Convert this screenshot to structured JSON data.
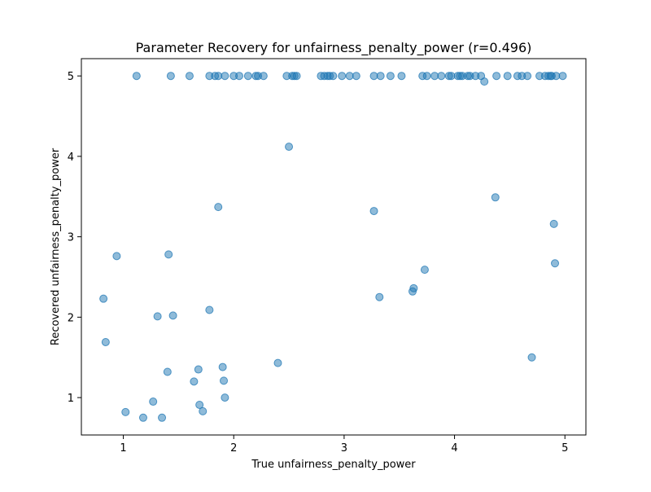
{
  "chart_data": {
    "type": "scatter",
    "title": "Parameter Recovery for unfairness_penalty_power (r=0.496)",
    "xlabel": "True unfairness_penalty_power",
    "ylabel": "Recovered unfairness_penalty_power",
    "xlim": [
      0.62,
      5.19
    ],
    "ylim": [
      0.535,
      5.215
    ],
    "xticks": [
      1,
      2,
      3,
      4,
      5
    ],
    "yticks": [
      1,
      2,
      3,
      4,
      5
    ],
    "grid": false,
    "marker_color": "#1f77b4",
    "marker_alpha": 0.5,
    "series": [
      {
        "points": [
          [
            1.12,
            5.0
          ],
          [
            1.43,
            5.0
          ],
          [
            1.6,
            5.0
          ],
          [
            1.78,
            5.0
          ],
          [
            1.83,
            5.0
          ],
          [
            1.86,
            5.0
          ],
          [
            1.92,
            5.0
          ],
          [
            2.0,
            5.0
          ],
          [
            2.05,
            5.0
          ],
          [
            2.13,
            5.0
          ],
          [
            2.2,
            5.0
          ],
          [
            2.22,
            5.0
          ],
          [
            2.27,
            5.0
          ],
          [
            2.48,
            5.0
          ],
          [
            2.53,
            5.0
          ],
          [
            2.55,
            5.0
          ],
          [
            2.57,
            5.0
          ],
          [
            2.79,
            5.0
          ],
          [
            2.82,
            5.0
          ],
          [
            2.85,
            5.0
          ],
          [
            2.87,
            5.0
          ],
          [
            2.9,
            5.0
          ],
          [
            2.98,
            5.0
          ],
          [
            3.05,
            5.0
          ],
          [
            3.11,
            5.0
          ],
          [
            3.27,
            5.0
          ],
          [
            3.33,
            5.0
          ],
          [
            3.42,
            5.0
          ],
          [
            3.52,
            5.0
          ],
          [
            3.71,
            5.0
          ],
          [
            3.75,
            5.0
          ],
          [
            3.82,
            5.0
          ],
          [
            3.88,
            5.0
          ],
          [
            3.95,
            5.0
          ],
          [
            3.97,
            5.0
          ],
          [
            4.03,
            5.0
          ],
          [
            4.05,
            5.0
          ],
          [
            4.07,
            5.0
          ],
          [
            4.12,
            5.0
          ],
          [
            4.14,
            5.0
          ],
          [
            4.19,
            5.0
          ],
          [
            4.24,
            5.0
          ],
          [
            4.38,
            5.0
          ],
          [
            4.48,
            5.0
          ],
          [
            4.57,
            5.0
          ],
          [
            4.61,
            5.0
          ],
          [
            4.66,
            5.0
          ],
          [
            4.77,
            5.0
          ],
          [
            4.82,
            5.0
          ],
          [
            4.85,
            5.0
          ],
          [
            4.87,
            5.0
          ],
          [
            4.88,
            5.0
          ],
          [
            4.92,
            5.0
          ],
          [
            4.98,
            5.0
          ],
          [
            4.27,
            4.93
          ],
          [
            2.5,
            4.12
          ],
          [
            4.37,
            3.49
          ],
          [
            1.86,
            3.37
          ],
          [
            3.27,
            3.32
          ],
          [
            4.9,
            3.16
          ],
          [
            0.94,
            2.76
          ],
          [
            1.41,
            2.78
          ],
          [
            4.91,
            2.67
          ],
          [
            3.73,
            2.59
          ],
          [
            3.63,
            2.36
          ],
          [
            3.62,
            2.32
          ],
          [
            3.32,
            2.25
          ],
          [
            0.82,
            2.23
          ],
          [
            1.78,
            2.09
          ],
          [
            1.31,
            2.01
          ],
          [
            1.45,
            2.02
          ],
          [
            0.84,
            1.69
          ],
          [
            4.7,
            1.5
          ],
          [
            2.4,
            1.43
          ],
          [
            1.9,
            1.38
          ],
          [
            1.68,
            1.35
          ],
          [
            1.4,
            1.32
          ],
          [
            1.91,
            1.21
          ],
          [
            1.64,
            1.2
          ],
          [
            1.92,
            1.0
          ],
          [
            1.27,
            0.95
          ],
          [
            1.69,
            0.91
          ],
          [
            1.72,
            0.83
          ],
          [
            1.02,
            0.82
          ],
          [
            1.18,
            0.75
          ],
          [
            1.35,
            0.75
          ]
        ]
      }
    ]
  }
}
